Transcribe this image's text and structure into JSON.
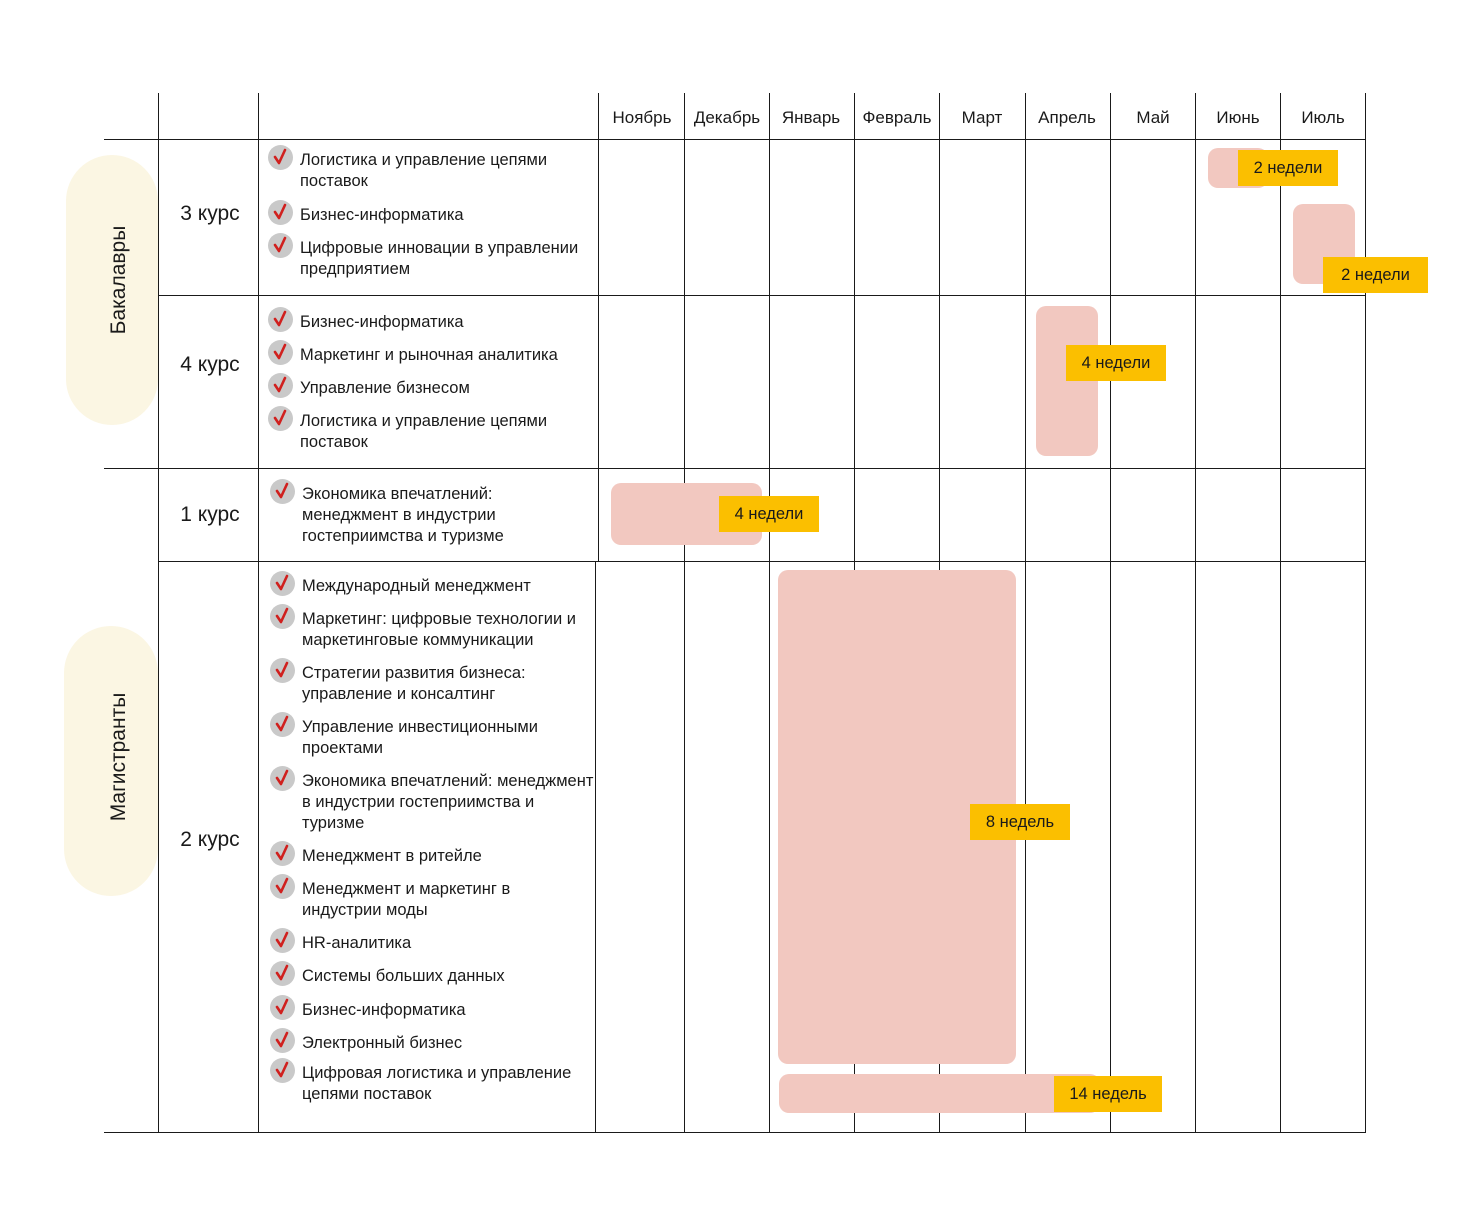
{
  "months": [
    "Ноябрь",
    "Декабрь",
    "Январь",
    "Февраль",
    "Март",
    "Апрель",
    "Май",
    "Июнь",
    "Июль"
  ],
  "groups": [
    {
      "label": "Бакалавры"
    },
    {
      "label": "Магистранты"
    }
  ],
  "courses": [
    {
      "label": "3 курс",
      "programs": [
        "Логистика и управление цепями поставок",
        "Бизнес-информатика",
        "Цифровые инновации в управлении предприятием"
      ]
    },
    {
      "label": "4 курс",
      "programs": [
        "Бизнес-информатика",
        "Маркетинг и рыночная аналитика",
        "Управление бизнесом",
        "Логистика и управление цепями поставок"
      ]
    },
    {
      "label": "1 курс",
      "programs": [
        "Экономика впечатлений: менеджмент в индустрии гостеприимства и туризме"
      ]
    },
    {
      "label": "2 курс",
      "programs": [
        "Международный менеджмент",
        "Маркетинг: цифровые технологии и маркетинговые коммуникации",
        "Стратегии развития бизнеса: управление и консалтинг",
        "Управление инвестиционными проектами",
        "Экономика впечатлений: менеджмент в индустрии гостеприимства и туризме",
        "Менеджмент в ритейле",
        "Менеджмент и маркетинг в индустрии моды",
        "HR-аналитика",
        "Системы больших данных",
        "Бизнес-информатика",
        "Электронный бизнес",
        "Цифровая логистика и управление цепями поставок"
      ]
    }
  ],
  "colors": {
    "bar": "#f2c8c0",
    "badge": "#fbbf00",
    "group_pill": "#fbf6e3",
    "check_circle": "#c9c9c9",
    "check_mark": "#d0201e"
  },
  "chart_data": {
    "type": "gantt",
    "categories": [
      "Ноябрь",
      "Декабрь",
      "Январь",
      "Февраль",
      "Март",
      "Апрель",
      "Май",
      "Июнь",
      "Июль"
    ],
    "series": [
      {
        "course": "3 курс",
        "start": "Июнь",
        "end": "Июнь",
        "duration_label": "2 недели"
      },
      {
        "course": "3 курс",
        "start": "Июль",
        "end": "Июль",
        "duration_label": "2 недели"
      },
      {
        "course": "4 курс",
        "start": "Апрель",
        "end": "Апрель",
        "duration_label": "4 недели"
      },
      {
        "course": "1 курс",
        "start": "Ноябрь",
        "end": "Декабрь",
        "duration_label": "4 недели"
      },
      {
        "course": "2 курс",
        "start": "Январь",
        "end": "Март",
        "duration_label": "8 недель"
      },
      {
        "course": "2 курс",
        "start": "Январь",
        "end": "Апрель",
        "duration_label": "14 недель"
      }
    ]
  }
}
